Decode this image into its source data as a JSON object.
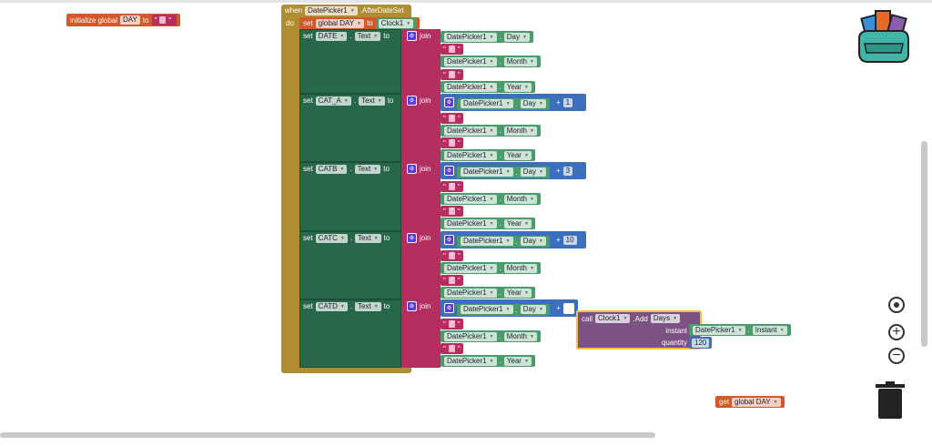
{
  "colors": {
    "event": "#b08d33",
    "setter": "#27684a",
    "join": "#b42f5f",
    "getter": "#4a9c6c",
    "math": "#3d6fbf",
    "variable": "#d4582a",
    "call": "#7b5282"
  },
  "init_global": {
    "label": "initialize global",
    "name": "DAY",
    "to": "to",
    "value": ""
  },
  "event": {
    "when": "when",
    "component": "DatePicker1",
    "event": ".AfterDateSet",
    "do": "do"
  },
  "set_global": {
    "set": "set",
    "var": "global DAY",
    "to": "to",
    "value": "Clock1"
  },
  "setters": [
    {
      "set": "set",
      "component": "DATE",
      "dot": ".",
      "property": "Text",
      "to": "to",
      "join": "join",
      "items": [
        {
          "type": "getter",
          "component": "DatePicker1",
          "property": "Day"
        },
        {
          "type": "text",
          "value": "/"
        },
        {
          "type": "getter",
          "component": "DatePicker1",
          "property": "Month"
        },
        {
          "type": "text",
          "value": "/"
        },
        {
          "type": "getter",
          "component": "DatePicker1",
          "property": "Year"
        }
      ]
    },
    {
      "set": "set",
      "component": "CAT_A",
      "dot": ".",
      "property": "Text",
      "to": "to",
      "join": "join",
      "items": [
        {
          "type": "add",
          "left": {
            "component": "DatePicker1",
            "property": "Day"
          },
          "op": "+",
          "right": "1"
        },
        {
          "type": "text",
          "value": "/"
        },
        {
          "type": "getter",
          "component": "DatePicker1",
          "property": "Month"
        },
        {
          "type": "text",
          "value": "/"
        },
        {
          "type": "getter",
          "component": "DatePicker1",
          "property": "Year"
        }
      ]
    },
    {
      "set": "set",
      "component": "CATB",
      "dot": ".",
      "property": "Text",
      "to": "to",
      "join": "join",
      "items": [
        {
          "type": "add",
          "left": {
            "component": "DatePicker1",
            "property": "Day"
          },
          "op": "+",
          "right": "3"
        },
        {
          "type": "text",
          "value": "/"
        },
        {
          "type": "getter",
          "component": "DatePicker1",
          "property": "Month"
        },
        {
          "type": "text",
          "value": "/"
        },
        {
          "type": "getter",
          "component": "DatePicker1",
          "property": "Year"
        }
      ]
    },
    {
      "set": "set",
      "component": "CATC",
      "dot": ".",
      "property": "Text",
      "to": "to",
      "join": "join",
      "items": [
        {
          "type": "add",
          "left": {
            "component": "DatePicker1",
            "property": "Day"
          },
          "op": "+",
          "right": "10"
        },
        {
          "type": "text",
          "value": "/"
        },
        {
          "type": "getter",
          "component": "DatePicker1",
          "property": "Month"
        },
        {
          "type": "text",
          "value": "/"
        },
        {
          "type": "getter",
          "component": "DatePicker1",
          "property": "Year"
        }
      ]
    },
    {
      "set": "set",
      "component": "CATD",
      "dot": ".",
      "property": "Text",
      "to": "to",
      "join": "join",
      "items": [
        {
          "type": "add",
          "left": {
            "component": "DatePicker1",
            "property": "Day"
          },
          "op": "+",
          "right": ""
        },
        {
          "type": "text",
          "value": "/"
        },
        {
          "type": "getter",
          "component": "DatePicker1",
          "property": "Month"
        },
        {
          "type": "text",
          "value": "/"
        },
        {
          "type": "getter",
          "component": "DatePicker1",
          "property": "Year"
        }
      ]
    }
  ],
  "call_block": {
    "call": "call",
    "component": "Clock1",
    "method": ".Add",
    "unit": "Days",
    "instant_label": "instant",
    "instant": {
      "component": "DatePicker1",
      "property": "Instant"
    },
    "quantity_label": "quantity",
    "quantity": "120"
  },
  "get_global": {
    "get": "get",
    "var": "global DAY"
  },
  "icons": [
    "backpack-icon",
    "target-icon",
    "zoom-in-icon",
    "zoom-out-icon",
    "trash-icon"
  ]
}
